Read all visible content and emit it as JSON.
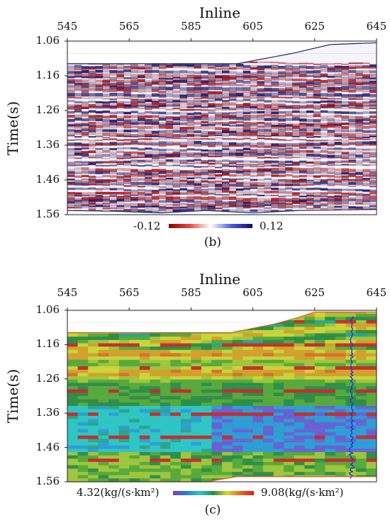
{
  "chart_data": [
    {
      "type": "heatmap",
      "panel": "(b)",
      "title": "",
      "xlabel": "Inline",
      "ylabel": "Time(s)",
      "x_ticks": [
        "545",
        "565",
        "585",
        "605",
        "625",
        "645"
      ],
      "y_ticks": [
        "1.06",
        "1.16",
        "1.26",
        "1.36",
        "1.46",
        "1.56"
      ],
      "xlim": [
        545,
        645
      ],
      "ylim": [
        1.06,
        1.56
      ],
      "x_axis_position": "top",
      "colorbar": {
        "min_label": "-0.12",
        "max_label": "0.12",
        "colors": [
          "#8b0000",
          "#e74a3b",
          "#ffffff",
          "#4a5bd6",
          "#101060"
        ]
      },
      "top_boundary": [
        [
          545,
          1.125
        ],
        [
          600,
          1.125
        ],
        [
          618,
          1.095
        ],
        [
          630,
          1.07
        ],
        [
          645,
          1.065
        ]
      ],
      "bottom_boundary": [
        [
          545,
          1.548
        ],
        [
          560,
          1.55
        ],
        [
          575,
          1.555
        ],
        [
          590,
          1.548
        ],
        [
          605,
          1.555
        ],
        [
          620,
          1.548
        ],
        [
          645,
          1.545
        ]
      ],
      "caption": "(b)"
    },
    {
      "type": "heatmap",
      "panel": "(c)",
      "title": "",
      "xlabel": "Inline",
      "ylabel": "Time(s)",
      "x_ticks": [
        "545",
        "565",
        "585",
        "605",
        "625",
        "645"
      ],
      "y_ticks": [
        "1.06",
        "1.16",
        "1.26",
        "1.36",
        "1.46",
        "1.56"
      ],
      "xlim": [
        545,
        645
      ],
      "ylim": [
        1.06,
        1.56
      ],
      "x_axis_position": "top",
      "colorbar": {
        "min_label": "4.32(kg/(s·km²)",
        "max_label": "9.08(kg/(s·km²)",
        "colors": [
          "#7a3cc8",
          "#2e7bd8",
          "#2ec8c8",
          "#2e8b3e",
          "#d8d830",
          "#e86a20",
          "#d42020"
        ]
      },
      "top_boundary": [
        [
          545,
          1.125
        ],
        [
          598,
          1.125
        ],
        [
          612,
          1.1
        ],
        [
          620,
          1.08
        ],
        [
          625,
          1.065
        ],
        [
          645,
          1.065
        ]
      ],
      "bottom_boundary": [
        [
          545,
          1.56
        ],
        [
          590,
          1.56
        ],
        [
          600,
          1.545
        ],
        [
          645,
          1.545
        ]
      ],
      "well_log_inline": 637,
      "caption": "(c)"
    }
  ]
}
